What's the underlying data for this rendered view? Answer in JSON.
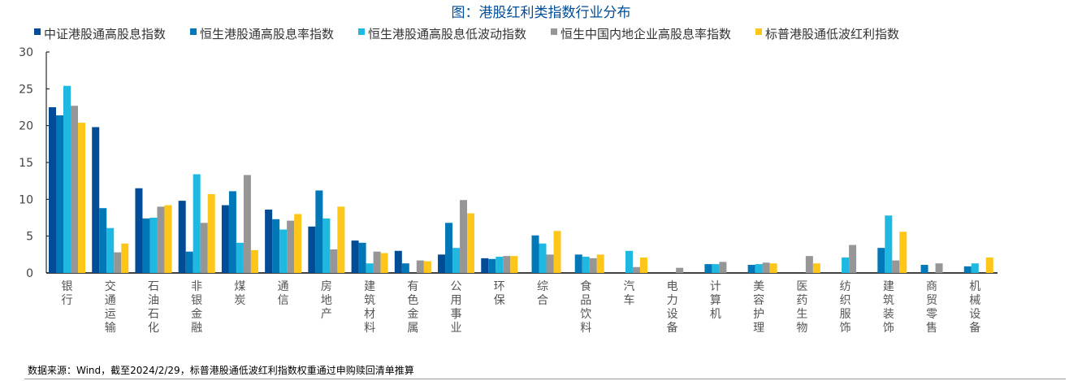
{
  "chart_data": {
    "type": "bar",
    "title": "图：港股红利类指数行业分布",
    "xlabel": "",
    "ylabel": "",
    "ylim": [
      0,
      30
    ],
    "yticks": [
      0,
      5,
      10,
      15,
      20,
      25,
      30
    ],
    "legend_position": "top",
    "grid": false,
    "categories": [
      "银行",
      "交通运输",
      "石油石化",
      "非银金融",
      "煤炭",
      "通信",
      "房地产",
      "建筑材料",
      "有色金属",
      "公用事业",
      "环保",
      "综合",
      "食品饮料",
      "汽车",
      "电力设备",
      "计算机",
      "美容护理",
      "医药生物",
      "纺织服饰",
      "建筑装饰",
      "商贸零售",
      "机械设备"
    ],
    "series": [
      {
        "name": "中证港股通高股息指数",
        "color": "#004C97",
        "values": [
          22.5,
          19.8,
          11.5,
          9.8,
          9.2,
          8.6,
          6.3,
          4.4,
          3.0,
          2.5,
          2.0,
          null,
          null,
          null,
          null,
          null,
          null,
          null,
          null,
          null,
          null,
          null
        ]
      },
      {
        "name": "恒生港股通高股息率指数",
        "color": "#0077B6",
        "values": [
          21.4,
          8.8,
          7.4,
          2.9,
          11.1,
          7.3,
          11.2,
          4.1,
          1.3,
          6.8,
          1.9,
          5.1,
          2.5,
          null,
          null,
          1.2,
          1.1,
          null,
          null,
          3.4,
          1.1,
          0.9
        ]
      },
      {
        "name": "恒生港股通高股息低波动指数",
        "color": "#1FB8E0",
        "values": [
          25.4,
          6.1,
          7.5,
          13.4,
          4.1,
          5.9,
          7.4,
          1.3,
          null,
          3.4,
          2.2,
          4.0,
          2.2,
          3.0,
          null,
          1.2,
          1.2,
          null,
          2.1,
          7.8,
          null,
          1.3
        ]
      },
      {
        "name": "恒生中国内地企业高股息率指数",
        "color": "#969696",
        "values": [
          22.7,
          2.8,
          9.0,
          6.8,
          13.3,
          7.1,
          3.2,
          2.9,
          1.7,
          9.9,
          2.3,
          2.5,
          2.0,
          0.8,
          0.7,
          1.5,
          1.4,
          2.3,
          3.8,
          1.7,
          1.3,
          null
        ]
      },
      {
        "name": "标普港股通低波红利指数",
        "color": "#FFC61A",
        "values": [
          20.4,
          4.0,
          9.2,
          10.7,
          3.1,
          8.0,
          9.0,
          2.7,
          1.6,
          8.1,
          2.3,
          5.7,
          2.5,
          2.1,
          null,
          null,
          1.3,
          1.3,
          null,
          5.6,
          null,
          2.1
        ]
      }
    ]
  },
  "source_note": "数据来源：Wind，截至2024/2/29，标普港股通低波红利指数权重通过申购赎回清单推算"
}
